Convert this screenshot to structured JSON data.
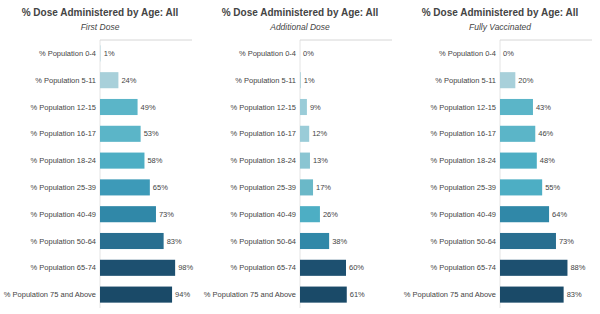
{
  "chart_data": [
    {
      "type": "bar",
      "orientation": "horizontal",
      "title": "% Dose Administered by Age: All",
      "subtitle": "First Dose",
      "categories": [
        "% Population 0-4",
        "% Population 5-11",
        "% Population 12-15",
        "% Population 16-17",
        "% Population 18-24",
        "% Population 25-39",
        "% Population 40-49",
        "% Population 50-64",
        "% Population 65-74",
        "% Population 75 and Above"
      ],
      "values": [
        1,
        24,
        49,
        53,
        58,
        65,
        73,
        83,
        98,
        94
      ],
      "value_labels": [
        "1%",
        "24%",
        "49%",
        "53%",
        "58%",
        "65%",
        "73%",
        "83%",
        "98%",
        "94%"
      ],
      "colors": [
        "#c8e0e6",
        "#a8d0da",
        "#5bb5c8",
        "#5bb5c8",
        "#4daec4",
        "#3d9ab8",
        "#3088a8",
        "#286e90",
        "#1d5070",
        "#1a4a68"
      ],
      "xlim": [
        0,
        120
      ],
      "data_labels": true,
      "tick_labels": "y"
    },
    {
      "type": "bar",
      "orientation": "horizontal",
      "title": "% Dose Administered by Age: All",
      "subtitle": "Additional Dose",
      "categories": [
        "% Population 0-4",
        "% Population 5-11",
        "% Population 12-15",
        "% Population 16-17",
        "% Population 18-24",
        "% Population 25-39",
        "% Population 40-49",
        "% Population 50-64",
        "% Population 65-74",
        "% Population 75 and Above"
      ],
      "values": [
        0,
        1,
        9,
        12,
        13,
        17,
        26,
        38,
        60,
        61
      ],
      "value_labels": [
        "0%",
        "1%",
        "9%",
        "12%",
        "13%",
        "17%",
        "26%",
        "38%",
        "60%",
        "61%"
      ],
      "colors": [
        "#c8e0e6",
        "#a8d0da",
        "#9accd8",
        "#9accd8",
        "#8ac5d2",
        "#6ab8c8",
        "#4daec4",
        "#3088a8",
        "#1d5070",
        "#1a4a68"
      ],
      "xlim": [
        0,
        120
      ],
      "data_labels": true,
      "tick_labels": "y"
    },
    {
      "type": "bar",
      "orientation": "horizontal",
      "title": "% Dose Administered by Age: All",
      "subtitle": "Fully Vaccinated",
      "categories": [
        "% Population 0-4",
        "% Population 5-11",
        "% Population 12-15",
        "% Population 16-17",
        "% Population 18-24",
        "% Population 25-39",
        "% Population 40-49",
        "% Population 50-64",
        "% Population 65-74",
        "% Population 75 and Above"
      ],
      "values": [
        0,
        20,
        43,
        46,
        48,
        55,
        64,
        73,
        88,
        83
      ],
      "value_labels": [
        "0%",
        "20%",
        "43%",
        "46%",
        "48%",
        "55%",
        "64%",
        "73%",
        "88%",
        "83%"
      ],
      "colors": [
        "#c8e0e6",
        "#a8d0da",
        "#5bb5c8",
        "#5bb5c8",
        "#4daec4",
        "#4daec4",
        "#3088a8",
        "#286e90",
        "#1d5070",
        "#1a4a68"
      ],
      "xlim": [
        0,
        120
      ],
      "data_labels": true,
      "tick_labels": "y"
    }
  ]
}
